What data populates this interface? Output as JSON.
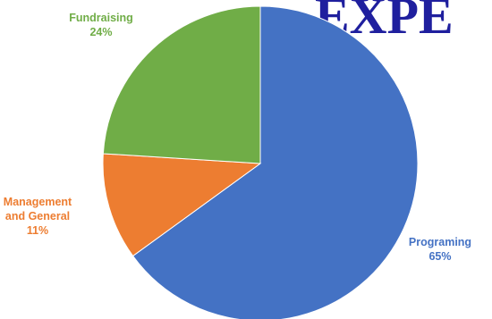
{
  "chart_data": {
    "type": "pie",
    "title": "EXPE",
    "categories": [
      "Programing",
      "Management and General",
      "Fundraising"
    ],
    "values": [
      65,
      11,
      24
    ],
    "labels": [
      [
        "Programing",
        "65%"
      ],
      [
        "Management",
        "and General",
        "11%"
      ],
      [
        "Fundraising",
        "24%"
      ]
    ],
    "colors": [
      "#4472c4",
      "#ed7d31",
      "#70ad47"
    ],
    "legend": "none",
    "label_placement": "outside"
  }
}
